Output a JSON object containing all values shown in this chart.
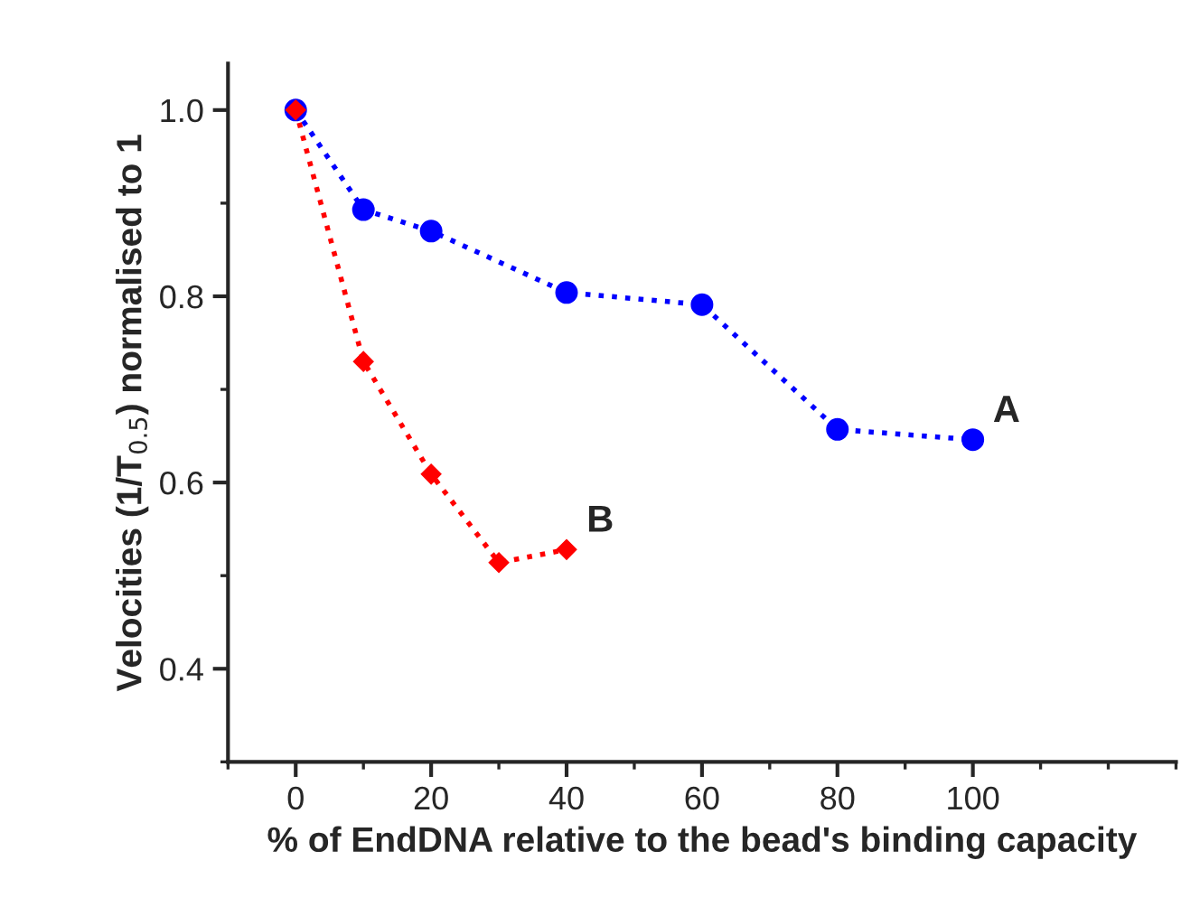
{
  "chart_data": {
    "type": "line",
    "xlabel": "% of EndDNA relative to the bead's binding capacity",
    "ylabel": "Velocities (1/T$_{0.5}$) normalised to 1",
    "xlim": [
      -10,
      130
    ],
    "xticks": [
      0,
      20,
      40,
      60,
      80,
      100
    ],
    "ylim": [
      0.3,
      1.05
    ],
    "yticks": [
      0.4,
      0.6,
      0.8,
      {
        "value": 1.0,
        "label": "1.0"
      }
    ],
    "line_style": "dotted",
    "grid": false,
    "legend": false,
    "series": [
      {
        "name": "A",
        "color": "#0000ff",
        "marker": "circle",
        "x": [
          0,
          10,
          20,
          40,
          60,
          80,
          100
        ],
        "values": [
          1.0,
          0.893,
          0.87,
          0.804,
          0.791,
          0.657,
          0.646
        ]
      },
      {
        "name": "B",
        "color": "#ff0000",
        "marker": "diamond",
        "x": [
          0,
          10,
          20,
          30,
          40
        ],
        "values": [
          1.0,
          0.73,
          0.609,
          0.514,
          0.528
        ]
      }
    ]
  }
}
